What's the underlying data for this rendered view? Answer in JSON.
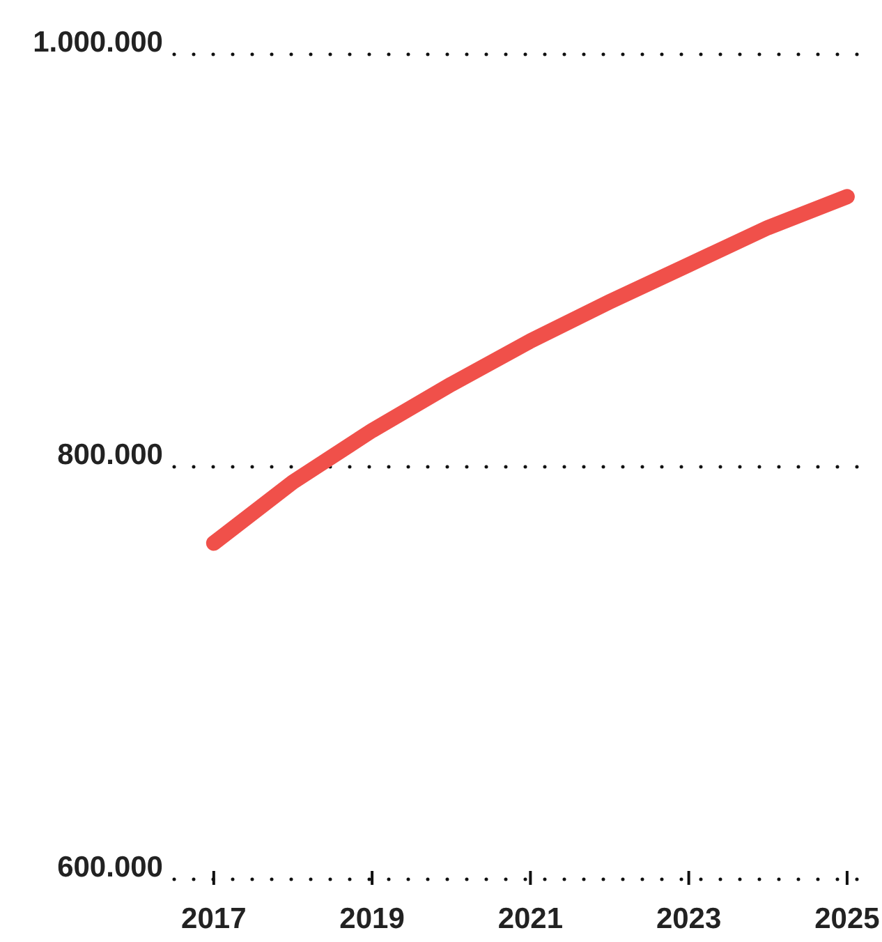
{
  "chart_data": {
    "type": "line",
    "x": [
      2017,
      2018,
      2019,
      2020,
      2021,
      2022,
      2023,
      2024,
      2025
    ],
    "series": [
      {
        "color": "#f0504a",
        "values": [
          763000,
          792600,
          817600,
          840000,
          861000,
          880000,
          898000,
          916000,
          931000
        ]
      }
    ],
    "xlim": [
      2016.5,
      2025.3
    ],
    "xticks": [
      2017,
      2019,
      2021,
      2023,
      2025
    ],
    "ylim": [
      600000,
      1000000
    ],
    "yticks": [
      {
        "value": 600000,
        "label": "600.000"
      },
      {
        "value": 800000,
        "label": "800.000"
      },
      {
        "value": 1000000,
        "label": "1.000.000"
      }
    ],
    "grid": "y",
    "marker": "none",
    "line_style": "solid"
  }
}
